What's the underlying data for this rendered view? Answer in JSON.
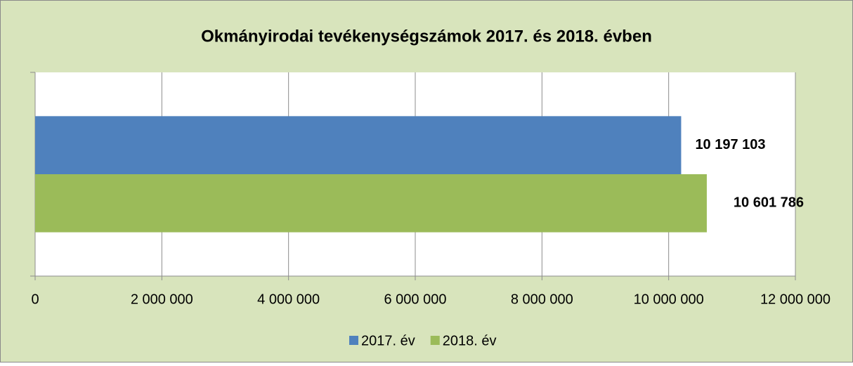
{
  "chart_data": {
    "type": "hbar",
    "title": "Okmányirodai tevékenységszámok 2017. és 2018. évben",
    "categories": [
      null
    ],
    "series": [
      {
        "name": "2017. év",
        "color": "#4f81bd",
        "values": [
          10197103
        ],
        "value_labels": [
          "10 197 103"
        ]
      },
      {
        "name": "2018. év",
        "color": "#9bbb59",
        "values": [
          10601786
        ],
        "value_labels": [
          "10 601 786"
        ]
      }
    ],
    "xlim": [
      0,
      12000000
    ],
    "xticks": [
      0,
      {
        "value": 2000000,
        "label": "2 000 000"
      },
      {
        "value": 4000000,
        "label": "4 000 000"
      },
      {
        "value": 6000000,
        "label": "6 000 000"
      },
      {
        "value": 8000000,
        "label": "8 000 000"
      },
      {
        "value": 10000000,
        "label": "10 000 000"
      },
      {
        "value": 12000000,
        "label": "12 000 000"
      }
    ],
    "grid": true,
    "legend": "bottom"
  }
}
